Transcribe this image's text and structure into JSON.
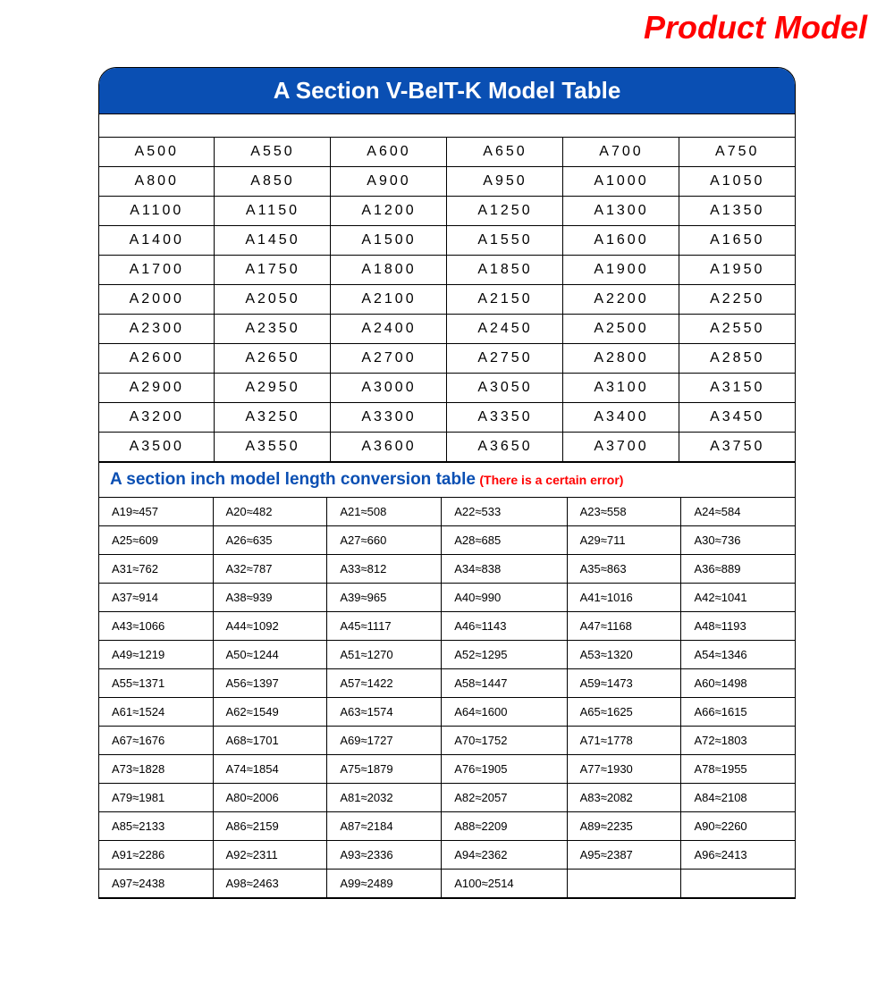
{
  "page_title": "Product Model",
  "header_title": "A Section V-BeIT-K Model Table",
  "colors": {
    "header_bg": "#0a4fb3",
    "header_text": "#ffffff",
    "page_title": "#ff0000",
    "sub_header_main": "#0a4fb3",
    "sub_header_note": "#ff0000",
    "border": "#000000",
    "cell_text": "#000000",
    "background": "#ffffff"
  },
  "fonts": {
    "page_title_size": 36,
    "header_size": 26,
    "model_cell_size": 16,
    "model_letter_spacing": 3,
    "sub_header_main_size": 19,
    "sub_header_note_size": 14,
    "conv_cell_size": 13
  },
  "model_table": {
    "columns": 6,
    "rows": [
      [
        "A500",
        "A550",
        "A600",
        "A650",
        "A700",
        "A750"
      ],
      [
        "A800",
        "A850",
        "A900",
        "A950",
        "A1000",
        "A1050"
      ],
      [
        "A1100",
        "A1150",
        "A1200",
        "A1250",
        "A1300",
        "A1350"
      ],
      [
        "A1400",
        "A1450",
        "A1500",
        "A1550",
        "A1600",
        "A1650"
      ],
      [
        "A1700",
        "A1750",
        "A1800",
        "A1850",
        "A1900",
        "A1950"
      ],
      [
        "A2000",
        "A2050",
        "A2100",
        "A2150",
        "A2200",
        "A2250"
      ],
      [
        "A2300",
        "A2350",
        "A2400",
        "A2450",
        "A2500",
        "A2550"
      ],
      [
        "A2600",
        "A2650",
        "A2700",
        "A2750",
        "A2800",
        "A2850"
      ],
      [
        "A2900",
        "A2950",
        "A3000",
        "A3050",
        "A3100",
        "A3150"
      ],
      [
        "A3200",
        "A3250",
        "A3300",
        "A3350",
        "A3400",
        "A3450"
      ],
      [
        "A3500",
        "A3550",
        "A3600",
        "A3650",
        "A3700",
        "A3750"
      ]
    ]
  },
  "sub_header": {
    "main": "A section inch model length conversion table",
    "note": "(There is a certain error)"
  },
  "conversion_table": {
    "columns": 6,
    "approx_symbol": "≈",
    "rows": [
      [
        "A19≈457",
        "A20≈482",
        "A21≈508",
        "A22≈533",
        "A23≈558",
        "A24≈584"
      ],
      [
        "A25≈609",
        "A26≈635",
        "A27≈660",
        "A28≈685",
        "A29≈711",
        "A30≈736"
      ],
      [
        "A31≈762",
        "A32≈787",
        "A33≈812",
        "A34≈838",
        "A35≈863",
        "A36≈889"
      ],
      [
        "A37≈914",
        "A38≈939",
        "A39≈965",
        "A40≈990",
        "A41≈1016",
        "A42≈1041"
      ],
      [
        "A43≈1066",
        "A44≈1092",
        "A45≈1117",
        "A46≈1143",
        "A47≈1168",
        "A48≈1193"
      ],
      [
        "A49≈1219",
        "A50≈1244",
        "A51≈1270",
        "A52≈1295",
        "A53≈1320",
        "A54≈1346"
      ],
      [
        "A55≈1371",
        "A56≈1397",
        "A57≈1422",
        "A58≈1447",
        "A59≈1473",
        "A60≈1498"
      ],
      [
        "A61≈1524",
        "A62≈1549",
        "A63≈1574",
        "A64≈1600",
        "A65≈1625",
        "A66≈1615"
      ],
      [
        "A67≈1676",
        "A68≈1701",
        "A69≈1727",
        "A70≈1752",
        "A71≈1778",
        "A72≈1803"
      ],
      [
        "A73≈1828",
        "A74≈1854",
        "A75≈1879",
        "A76≈1905",
        "A77≈1930",
        "A78≈1955"
      ],
      [
        "A79≈1981",
        "A80≈2006",
        "A81≈2032",
        "A82≈2057",
        "A83≈2082",
        "A84≈2108"
      ],
      [
        "A85≈2133",
        "A86≈2159",
        "A87≈2184",
        "A88≈2209",
        "A89≈2235",
        "A90≈2260"
      ],
      [
        "A91≈2286",
        "A92≈2311",
        "A93≈2336",
        "A94≈2362",
        "A95≈2387",
        "A96≈2413"
      ],
      [
        "A97≈2438",
        "A98≈2463",
        "A99≈2489",
        "A100≈2514",
        "",
        ""
      ]
    ]
  }
}
